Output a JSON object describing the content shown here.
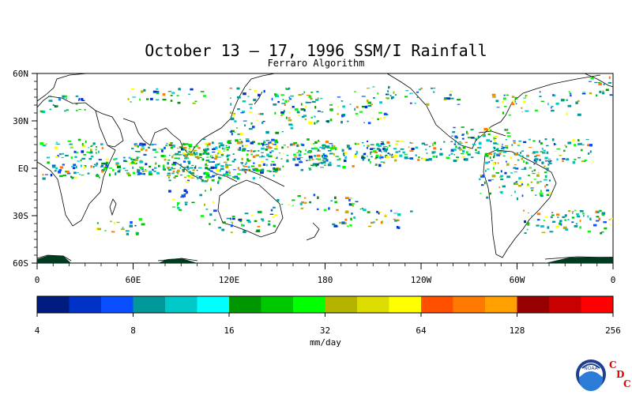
{
  "title": "October 13 – 17, 1996 SSM/I Rainfall",
  "subtitle": "Ferraro Algorithm",
  "lat_labels": [
    "60N",
    "30N",
    "EQ",
    "30S",
    "60S"
  ],
  "lon_labels": [
    "0",
    "60E",
    "120E",
    "180",
    "120W",
    "60W",
    "0"
  ],
  "colorbar": {
    "colors": [
      "#001b7f",
      "#0032c8",
      "#0a4fff",
      "#009898",
      "#00c8c8",
      "#00ffff",
      "#009600",
      "#00c800",
      "#00ff00",
      "#b4b400",
      "#dcdc00",
      "#ffff00",
      "#ff5000",
      "#ff7a00",
      "#ffa000",
      "#960000",
      "#c80000",
      "#ff0000"
    ],
    "tick_labels": [
      "4",
      "8",
      "16",
      "32",
      "64",
      "128",
      "256"
    ],
    "unit": "mm/day"
  },
  "logo": {
    "text": "NOAA",
    "letters": [
      "C",
      "D",
      "C"
    ]
  }
}
